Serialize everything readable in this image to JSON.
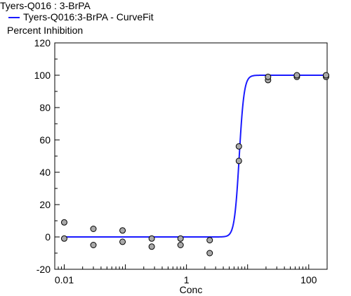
{
  "chart_data": {
    "type": "scatter",
    "title": "Tyers-Q016  : 3-BrPA",
    "legend": [
      {
        "label": "Tyers-Q016:3-BrPA - CurveFit",
        "color": "#1a1aff"
      }
    ],
    "ylabel": "Percent Inhibition",
    "xlabel": "Conc",
    "x_scale": "log",
    "xlim": [
      0.007,
      200
    ],
    "ylim": [
      -20,
      120
    ],
    "x_ticks": [
      {
        "value": 0.01,
        "label": "0.01"
      },
      {
        "value": 1,
        "label": "1"
      },
      {
        "value": 100,
        "label": "100"
      }
    ],
    "y_ticks": [
      {
        "value": -20,
        "label": "-20"
      },
      {
        "value": 0,
        "label": "0"
      },
      {
        "value": 20,
        "label": "20"
      },
      {
        "value": 40,
        "label": "40"
      },
      {
        "value": 60,
        "label": "60"
      },
      {
        "value": 80,
        "label": "80"
      },
      {
        "value": 100,
        "label": "100"
      },
      {
        "value": 120,
        "label": "120"
      }
    ],
    "points": {
      "x": [
        0.01,
        0.01,
        0.03,
        0.03,
        0.09,
        0.09,
        0.27,
        0.27,
        0.8,
        0.8,
        2.4,
        2.4,
        7.2,
        7.2,
        21.6,
        21.6,
        64,
        64,
        192,
        192
      ],
      "y": [
        9,
        -1,
        5,
        -5,
        4,
        -3,
        -1,
        -6,
        -1,
        -5,
        -2,
        -10,
        56,
        47,
        97,
        99,
        99,
        100,
        99,
        100
      ],
      "fill": "#a9a9a9",
      "stroke": "#000000"
    },
    "curve": {
      "color": "#1a1aff",
      "bottom": 0,
      "top": 100,
      "ic50": 7.3,
      "hill": 11
    },
    "grid": false
  }
}
